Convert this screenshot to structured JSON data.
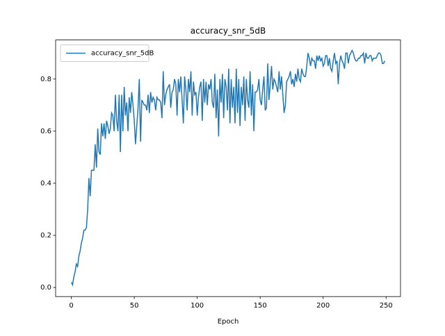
{
  "chart_data": {
    "type": "line",
    "title": "accuracy_snr_5dB",
    "x_label": "Epoch",
    "x": [
      0,
      1,
      2,
      3,
      4,
      5,
      6,
      7,
      8,
      9,
      10,
      11,
      12,
      13,
      14,
      15,
      16,
      17,
      18,
      19,
      20,
      21,
      22,
      23,
      24,
      25,
      26,
      27,
      28,
      29,
      30,
      31,
      32,
      33,
      34,
      35,
      36,
      37,
      38,
      39,
      40,
      41,
      42,
      43,
      44,
      45,
      46,
      47,
      48,
      49,
      50,
      51,
      52,
      53,
      54,
      55,
      56,
      57,
      58,
      59,
      60,
      61,
      62,
      63,
      64,
      65,
      66,
      67,
      68,
      69,
      70,
      71,
      72,
      73,
      74,
      75,
      76,
      77,
      78,
      79,
      80,
      81,
      82,
      83,
      84,
      85,
      86,
      87,
      88,
      89,
      90,
      91,
      92,
      93,
      94,
      95,
      96,
      97,
      98,
      99,
      100,
      101,
      102,
      103,
      104,
      105,
      106,
      107,
      108,
      109,
      110,
      111,
      112,
      113,
      114,
      115,
      116,
      117,
      118,
      119,
      120,
      121,
      122,
      123,
      124,
      125,
      126,
      127,
      128,
      129,
      130,
      131,
      132,
      133,
      134,
      135,
      136,
      137,
      138,
      139,
      140,
      141,
      142,
      143,
      144,
      145,
      146,
      147,
      148,
      149,
      150,
      151,
      152,
      153,
      154,
      155,
      156,
      157,
      158,
      159,
      160,
      161,
      162,
      163,
      164,
      165,
      166,
      167,
      168,
      169,
      170,
      171,
      172,
      173,
      174,
      175,
      176,
      177,
      178,
      179,
      180,
      181,
      182,
      183,
      184,
      185,
      186,
      187,
      188,
      189,
      190,
      191,
      192,
      193,
      194,
      195,
      196,
      197,
      198,
      199,
      200,
      201,
      202,
      203,
      204,
      205,
      206,
      207,
      208,
      209,
      210,
      211,
      212,
      213,
      214,
      215,
      216,
      217,
      218,
      219,
      220,
      221,
      222,
      223,
      224,
      225,
      226,
      227,
      228,
      229,
      230,
      231,
      232,
      233,
      234,
      235,
      236,
      237,
      238,
      239,
      240,
      241,
      242,
      243,
      244,
      245,
      246,
      247,
      248,
      249
    ],
    "series": [
      {
        "name": "accuracy_snr_5dB",
        "color": "#1f77b4",
        "values": [
          0.02,
          0.01,
          0.04,
          0.06,
          0.09,
          0.08,
          0.12,
          0.14,
          0.17,
          0.19,
          0.22,
          0.22,
          0.23,
          0.3,
          0.42,
          0.35,
          0.45,
          0.45,
          0.45,
          0.55,
          0.46,
          0.61,
          0.52,
          0.51,
          0.63,
          0.58,
          0.63,
          0.57,
          0.64,
          0.62,
          0.59,
          0.61,
          0.67,
          0.66,
          0.6,
          0.74,
          0.64,
          0.6,
          0.74,
          0.52,
          0.74,
          0.6,
          0.77,
          0.66,
          0.71,
          0.6,
          0.73,
          0.67,
          0.75,
          0.7,
          0.64,
          0.55,
          0.62,
          0.69,
          0.8,
          0.56,
          0.72,
          0.71,
          0.7,
          0.7,
          0.68,
          0.74,
          0.67,
          0.75,
          0.71,
          0.73,
          0.72,
          0.68,
          0.73,
          0.72,
          0.72,
          0.71,
          0.65,
          0.83,
          0.7,
          0.74,
          0.76,
          0.77,
          0.78,
          0.69,
          0.75,
          0.76,
          0.8,
          0.78,
          0.66,
          0.8,
          0.75,
          0.81,
          0.72,
          0.63,
          0.81,
          0.76,
          0.68,
          0.8,
          0.75,
          0.83,
          0.66,
          0.79,
          0.74,
          0.75,
          0.66,
          0.73,
          0.77,
          0.79,
          0.64,
          0.8,
          0.71,
          0.79,
          0.7,
          0.78,
          0.76,
          0.8,
          0.71,
          0.69,
          0.82,
          0.65,
          0.76,
          0.58,
          0.8,
          0.71,
          0.82,
          0.65,
          0.8,
          0.77,
          0.68,
          0.84,
          0.63,
          0.8,
          0.69,
          0.77,
          0.63,
          0.84,
          0.67,
          0.8,
          0.62,
          0.77,
          0.7,
          0.81,
          0.64,
          0.8,
          0.72,
          0.69,
          0.83,
          0.66,
          0.78,
          0.6,
          0.75,
          0.75,
          0.76,
          0.8,
          0.72,
          0.7,
          0.76,
          0.81,
          0.68,
          0.69,
          0.86,
          0.72,
          0.78,
          0.85,
          0.76,
          0.8,
          0.79,
          0.77,
          0.75,
          0.83,
          0.76,
          0.81,
          0.74,
          0.67,
          0.7,
          0.79,
          0.8,
          0.81,
          0.83,
          0.78,
          0.8,
          0.77,
          0.82,
          0.79,
          0.84,
          0.8,
          0.79,
          0.84,
          0.82,
          0.81,
          0.81,
          0.85,
          0.9,
          0.88,
          0.85,
          0.88,
          0.87,
          0.87,
          0.84,
          0.89,
          0.87,
          0.89,
          0.87,
          0.88,
          0.85,
          0.86,
          0.89,
          0.89,
          0.85,
          0.88,
          0.84,
          0.83,
          0.87,
          0.9,
          0.86,
          0.87,
          0.78,
          0.86,
          0.89,
          0.87,
          0.86,
          0.84,
          0.9,
          0.9,
          0.86,
          0.89,
          0.9,
          0.91,
          0.9,
          0.88,
          0.87,
          0.87,
          0.88,
          0.88,
          0.89,
          0.89,
          0.9,
          0.86,
          0.9,
          0.88,
          0.88,
          0.89,
          0.89,
          0.87,
          0.88,
          0.88,
          0.88,
          0.89,
          0.9,
          0.9,
          0.89,
          0.86,
          0.86,
          0.87
        ]
      }
    ],
    "xlim": [
      -12.45,
      261.45
    ],
    "xticks": [
      0,
      50,
      100,
      150,
      200,
      250
    ],
    "ylim": [
      -0.035,
      0.95
    ],
    "yticks": [
      {
        "value": 0,
        "label": "0.0"
      },
      0.2,
      0.4,
      0.6,
      0.8
    ],
    "legend": "upper left"
  }
}
